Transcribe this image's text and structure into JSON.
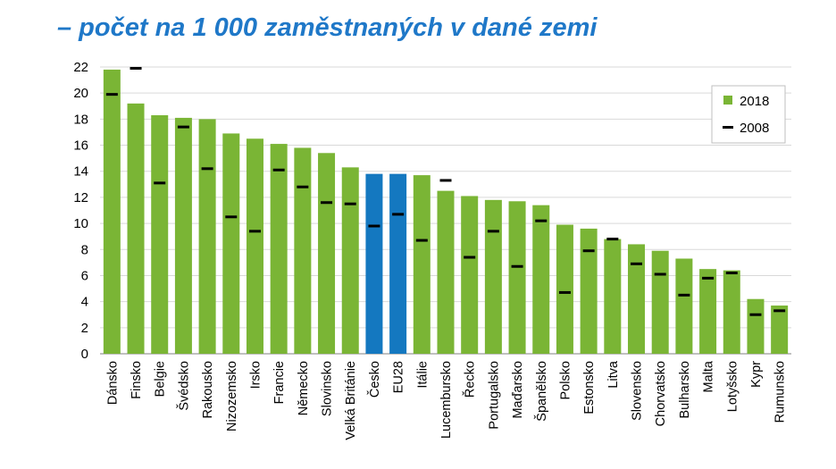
{
  "title_line1": "",
  "title_line2": "– počet na 1 000 zaměstnaných v dané zemi",
  "colors": {
    "bar_default": "#7ab535",
    "bar_highlight": "#1478c0",
    "marker": "#000000",
    "grid": "#d9d9d9",
    "title": "#1f78c8"
  },
  "chart_data": {
    "type": "bar",
    "title": "– počet na 1 000 zaměstnaných v dané zemi",
    "xlabel": "",
    "ylabel": "",
    "ylim": [
      0,
      22
    ],
    "yticks": [
      0,
      2,
      4,
      6,
      8,
      10,
      12,
      14,
      16,
      18,
      20,
      22
    ],
    "grid": true,
    "legend_position": "top-right",
    "categories": [
      "Dánsko",
      "Finsko",
      "Belgie",
      "Švédsko",
      "Rakousko",
      "Nizozemsko",
      "Irsko",
      "Francie",
      "Německo",
      "Slovinsko",
      "Velká Británie",
      "Česko",
      "EU28",
      "Itálie",
      "Lucembursko",
      "Řecko",
      "Portugalsko",
      "Maďarsko",
      "Španělsko",
      "Polsko",
      "Estonsko",
      "Litva",
      "Slovensko",
      "Chorvatsko",
      "Bulharsko",
      "Malta",
      "Lotyšsko",
      "Kypr",
      "Rumunsko"
    ],
    "highlight": [
      "Česko",
      "EU28"
    ],
    "series": [
      {
        "name": "2018",
        "kind": "bar",
        "values": [
          21.8,
          19.2,
          18.3,
          18.1,
          18.0,
          16.9,
          16.5,
          16.1,
          15.8,
          15.4,
          14.3,
          13.8,
          13.8,
          13.7,
          12.5,
          12.1,
          11.8,
          11.7,
          11.4,
          9.9,
          9.6,
          8.8,
          8.4,
          7.9,
          7.3,
          6.5,
          6.4,
          4.2,
          3.7
        ]
      },
      {
        "name": "2008",
        "kind": "marker",
        "values": [
          19.9,
          21.9,
          13.1,
          17.4,
          14.2,
          10.5,
          9.4,
          14.1,
          12.8,
          11.6,
          11.5,
          9.8,
          10.7,
          8.7,
          13.3,
          7.4,
          9.4,
          6.7,
          10.2,
          4.7,
          7.9,
          8.8,
          6.9,
          6.1,
          4.5,
          5.8,
          6.2,
          3.0,
          3.3
        ]
      }
    ]
  }
}
